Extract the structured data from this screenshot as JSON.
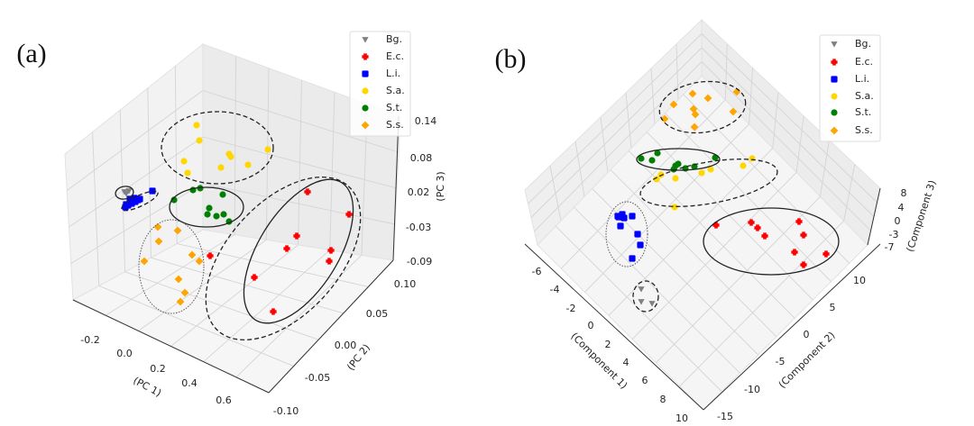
{
  "chart_data": [
    {
      "type": "scatter",
      "projection": "3d",
      "panel_label": "(a)",
      "xlabel": "(PC 1)",
      "ylabel": "(PC 2)",
      "zlabel": "(PC 3)",
      "x_ticks": [
        "-0.2",
        "0.0",
        "0.2",
        "0.4",
        "0.6"
      ],
      "y_ticks": [
        "-0.10",
        "-0.05",
        "0.00",
        "0.05",
        "0.10"
      ],
      "z_ticks": [
        "0.14",
        "0.08",
        "0.02",
        "-0.03",
        "-0.09"
      ],
      "grid": true,
      "legend_position": "top-right",
      "series": [
        {
          "name": "Bg.",
          "color": "#808080",
          "marker": "triangle-down"
        },
        {
          "name": "E.c.",
          "color": "#ff0000",
          "marker": "plus-filled"
        },
        {
          "name": "L.i.",
          "color": "#0000ff",
          "marker": "x-filled"
        },
        {
          "name": "S.a.",
          "color": "#ffd700",
          "marker": "circle"
        },
        {
          "name": "S.t.",
          "color": "#008000",
          "marker": "circle"
        },
        {
          "name": "S.s.",
          "color": "#ffa500",
          "marker": "diamond"
        }
      ]
    },
    {
      "type": "scatter",
      "projection": "3d",
      "panel_label": "(b)",
      "xlabel": "(Component 1)",
      "ylabel": "(Component 2)",
      "zlabel": "(Component 3)",
      "x_ticks": [
        "-6",
        "-4",
        "-2",
        "0",
        "2",
        "4",
        "6",
        "8",
        "10"
      ],
      "y_ticks": [
        "-15",
        "-10",
        "-5",
        "0",
        "5",
        "10"
      ],
      "z_ticks": [
        "8",
        "4",
        "0",
        "-3",
        "-7"
      ],
      "grid": true,
      "legend_position": "top-right",
      "series": [
        {
          "name": "Bg.",
          "color": "#808080",
          "marker": "triangle-down"
        },
        {
          "name": "E.c.",
          "color": "#ff0000",
          "marker": "plus-filled"
        },
        {
          "name": "L.i.",
          "color": "#0000ff",
          "marker": "x-filled"
        },
        {
          "name": "S.a.",
          "color": "#ffd700",
          "marker": "circle"
        },
        {
          "name": "S.t.",
          "color": "#008000",
          "marker": "circle"
        },
        {
          "name": "S.s.",
          "color": "#ffa500",
          "marker": "diamond"
        }
      ]
    }
  ]
}
